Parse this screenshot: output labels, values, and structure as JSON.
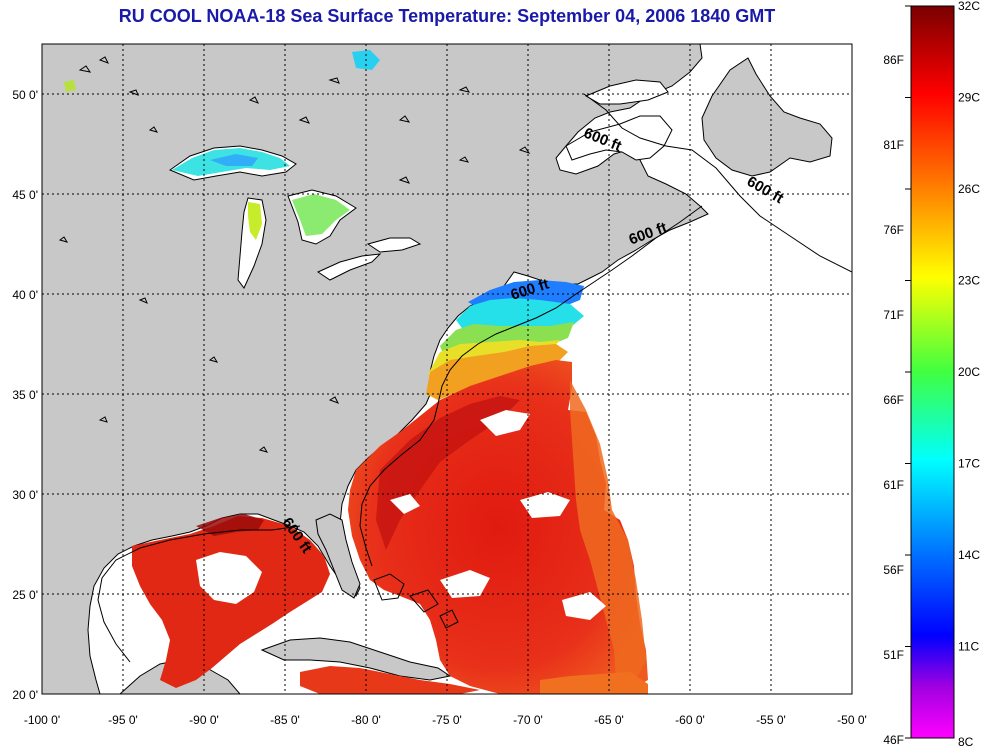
{
  "title": "RU COOL  NOAA-18  Sea Surface Temperature:  September 04, 2006 1840 GMT",
  "map": {
    "longitude_labels": [
      "-100 0'",
      "-95 0'",
      "-90 0'",
      "-85 0'",
      "-80 0'",
      "-75 0'",
      "-70 0'",
      "-65 0'",
      "-60 0'",
      "-55 0'",
      "-50 0'"
    ],
    "longitude_values": [
      -100,
      -95,
      -90,
      -85,
      -80,
      -75,
      -70,
      -65,
      -60,
      -55,
      -50
    ],
    "latitude_labels": [
      "50 0'",
      "45 0'",
      "40 0'",
      "35 0'",
      "30 0'",
      "25 0'",
      "20 0'"
    ],
    "latitude_values": [
      50,
      45,
      40,
      35,
      30,
      25,
      20
    ],
    "lon_range": [
      -100,
      -50
    ],
    "lat_range": [
      20,
      52.5
    ],
    "grid": true,
    "isobath_labels": [
      {
        "text": "600 ft",
        "lon": -65.5,
        "lat": 47.5
      },
      {
        "text": "600 ft",
        "lon": -55.5,
        "lat": 45.0
      },
      {
        "text": "600 ft",
        "lon": -62.5,
        "lat": 42.8
      },
      {
        "text": "600 ft",
        "lon": -69.8,
        "lat": 40.0
      },
      {
        "text": "600 ft",
        "lon": -84.5,
        "lat": 27.8
      }
    ],
    "colors": {
      "land": "#c8c8c8",
      "ocean_nodata": "#ffffff",
      "grid": "#000000"
    }
  },
  "colorbar": {
    "fahrenheit_labels": [
      "86F",
      "81F",
      "76F",
      "71F",
      "66F",
      "61F",
      "56F",
      "51F",
      "46F"
    ],
    "celsius_labels": [
      "32C",
      "29C",
      "26C",
      "23C",
      "20C",
      "17C",
      "14C",
      "11C",
      "8C"
    ],
    "celsius_range": [
      8,
      32
    ],
    "gradient": [
      "#8b0000",
      "#ff0000",
      "#ff8c00",
      "#ffff00",
      "#7fff00",
      "#00ffff",
      "#0080ff",
      "#0000ff",
      "#8000ff",
      "#ff00ff"
    ]
  }
}
